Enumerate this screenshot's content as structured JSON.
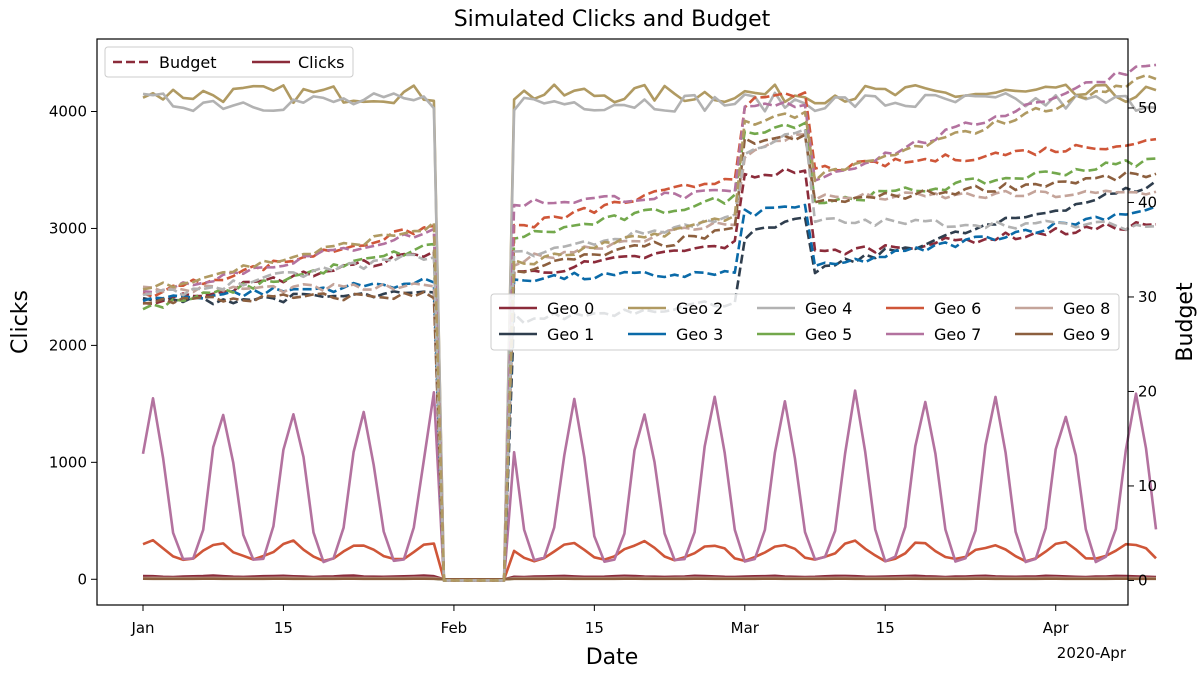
{
  "chart_data": {
    "type": "line",
    "title": "Simulated Clicks and Budget",
    "xlabel": "Date",
    "ylabel": "Clicks",
    "y2label": "Budget",
    "x_tick_labels": [
      "Jan",
      "15",
      "Feb",
      "15",
      "Mar",
      "15",
      "Apr"
    ],
    "x_offset_label": "2020-Apr",
    "x_range": [
      "2020-01-01",
      "2020-04-11"
    ],
    "ylim": [
      -220,
      4620
    ],
    "y2lim": [
      -2.6,
      57.3
    ],
    "y_ticks": [
      0,
      1000,
      2000,
      3000,
      4000
    ],
    "y2_ticks": [
      0,
      10,
      20,
      30,
      40,
      50
    ],
    "grid": false,
    "style_legend": {
      "placement": "top-left",
      "entries": [
        {
          "label": "Budget",
          "style": "dashed"
        },
        {
          "label": "Clicks",
          "style": "solid"
        }
      ]
    },
    "geo_legend": {
      "placement": "center-right",
      "entries": [
        {
          "label": "Geo 0",
          "color": "#8b2b3a"
        },
        {
          "label": "Geo 1",
          "color": "#2f3e4e"
        },
        {
          "label": "Geo 2",
          "color": "#b09a62"
        },
        {
          "label": "Geo 3",
          "color": "#0a6aa8"
        },
        {
          "label": "Geo 4",
          "color": "#b2b2b2"
        },
        {
          "label": "Geo 5",
          "color": "#73a84c"
        },
        {
          "label": "Geo 6",
          "color": "#cf5638"
        },
        {
          "label": "Geo 7",
          "color": "#b3729f"
        },
        {
          "label": "Geo 8",
          "color": "#c4a49a"
        },
        {
          "label": "Geo 9",
          "color": "#8c5f3e"
        }
      ]
    },
    "period_notes": {
      "zero_period": [
        "2020-01-31",
        "2020-02-07"
      ],
      "budget_boost_period": [
        "2020-03-01",
        "2020-03-07"
      ]
    },
    "clicks_series": [
      {
        "name": "Geo 0",
        "axis": "left",
        "color": "#8b2b3a",
        "weekly_pattern": [
          30,
          25,
          22,
          20,
          22,
          25,
          28
        ]
      },
      {
        "name": "Geo 1",
        "axis": "left",
        "color": "#2f3e4e",
        "weekly_pattern": [
          8,
          7,
          6,
          6,
          6,
          7,
          8
        ]
      },
      {
        "name": "Geo 2",
        "axis": "left",
        "color": "#b09a62",
        "base": 4150,
        "jitter": 80
      },
      {
        "name": "Geo 3",
        "axis": "left",
        "color": "#0a6aa8",
        "weekly_pattern": [
          8,
          7,
          6,
          6,
          6,
          7,
          8
        ]
      },
      {
        "name": "Geo 4",
        "axis": "left",
        "color": "#b2b2b2",
        "base": 4080,
        "jitter": 80
      },
      {
        "name": "Geo 5",
        "axis": "left",
        "color": "#73a84c",
        "weekly_pattern": [
          6,
          5,
          5,
          5,
          5,
          5,
          6
        ]
      },
      {
        "name": "Geo 6",
        "axis": "left",
        "color": "#cf5638",
        "weekly_pattern": [
          290,
          310,
          250,
          190,
          165,
          185,
          240
        ]
      },
      {
        "name": "Geo 7",
        "axis": "left",
        "color": "#b3729f",
        "weekly_pattern": [
          1100,
          1500,
          1050,
          400,
          160,
          180,
          420
        ]
      },
      {
        "name": "Geo 8",
        "axis": "left",
        "color": "#c4a49a",
        "weekly_pattern": [
          12,
          11,
          10,
          10,
          10,
          11,
          12
        ]
      },
      {
        "name": "Geo 9",
        "axis": "left",
        "color": "#8c5f3e",
        "weekly_pattern": [
          5,
          4,
          4,
          4,
          4,
          4,
          5
        ]
      }
    ],
    "budget_series": [
      {
        "name": "Geo 0",
        "axis": "right",
        "color": "#8b2b3a",
        "y_points": [
          [
            "2020-01-01",
            29.3
          ],
          [
            "2020-01-30",
            34.8
          ],
          [
            "2020-02-08",
            32.5
          ],
          [
            "2020-02-29",
            35.6
          ],
          [
            "2020-03-01",
            42.8
          ],
          [
            "2020-03-07",
            43.5
          ],
          [
            "2020-03-08",
            34.6
          ],
          [
            "2020-04-11",
            37.8
          ]
        ]
      },
      {
        "name": "Geo 1",
        "axis": "right",
        "color": "#2f3e4e",
        "y_points": [
          [
            "2020-01-01",
            29.5
          ],
          [
            "2020-01-30",
            30.3
          ],
          [
            "2020-02-08",
            27.6
          ],
          [
            "2020-02-29",
            29.5
          ],
          [
            "2020-03-01",
            36.5
          ],
          [
            "2020-03-07",
            38.1
          ],
          [
            "2020-03-08",
            32.8
          ],
          [
            "2020-04-11",
            42.0
          ]
        ]
      },
      {
        "name": "Geo 3",
        "axis": "right",
        "color": "#0a6aa8",
        "y_points": [
          [
            "2020-01-01",
            29.8
          ],
          [
            "2020-01-30",
            31.6
          ],
          [
            "2020-02-08",
            32.0
          ],
          [
            "2020-02-29",
            32.5
          ],
          [
            "2020-03-01",
            38.8
          ],
          [
            "2020-03-07",
            39.8
          ],
          [
            "2020-03-08",
            33.0
          ],
          [
            "2020-04-11",
            39.5
          ]
        ]
      },
      {
        "name": "Geo 5",
        "axis": "right",
        "color": "#73a84c",
        "y_points": [
          [
            "2020-01-01",
            28.7
          ],
          [
            "2020-01-30",
            35.4
          ],
          [
            "2020-02-08",
            36.5
          ],
          [
            "2020-02-29",
            40.5
          ],
          [
            "2020-03-01",
            47.5
          ],
          [
            "2020-03-07",
            48.5
          ],
          [
            "2020-03-08",
            40.0
          ],
          [
            "2020-04-11",
            44.5
          ]
        ]
      },
      {
        "name": "Geo 6",
        "axis": "right",
        "color": "#cf5638",
        "y_points": [
          [
            "2020-01-01",
            30.2
          ],
          [
            "2020-01-30",
            37.5
          ],
          [
            "2020-02-08",
            37.5
          ],
          [
            "2020-02-29",
            42.8
          ],
          [
            "2020-03-01",
            50.5
          ],
          [
            "2020-03-07",
            51.5
          ],
          [
            "2020-03-08",
            43.5
          ],
          [
            "2020-04-11",
            46.5
          ]
        ]
      },
      {
        "name": "Geo 7",
        "axis": "right",
        "color": "#b3729f",
        "y_points": [
          [
            "2020-01-01",
            30.5
          ],
          [
            "2020-01-30",
            37.0
          ],
          [
            "2020-02-08",
            40.0
          ],
          [
            "2020-02-29",
            41.0
          ],
          [
            "2020-03-01",
            50.0
          ],
          [
            "2020-03-07",
            50.5
          ],
          [
            "2020-03-08",
            42.5
          ],
          [
            "2020-04-11",
            55.0
          ]
        ]
      },
      {
        "name": "Geo 8",
        "axis": "right",
        "color": "#c4a49a",
        "y_points": [
          [
            "2020-01-01",
            30.8
          ],
          [
            "2020-01-30",
            31.0
          ],
          [
            "2020-02-08",
            34.0
          ],
          [
            "2020-02-29",
            38.0
          ],
          [
            "2020-03-01",
            45.0
          ],
          [
            "2020-03-07",
            47.5
          ],
          [
            "2020-03-08",
            40.5
          ],
          [
            "2020-04-11",
            41.0
          ]
        ]
      },
      {
        "name": "Geo 9",
        "axis": "right",
        "color": "#8c5f3e",
        "y_points": [
          [
            "2020-01-01",
            29.6
          ],
          [
            "2020-01-30",
            30.2
          ],
          [
            "2020-02-08",
            33.0
          ],
          [
            "2020-02-29",
            37.0
          ],
          [
            "2020-03-01",
            46.5
          ],
          [
            "2020-03-07",
            46.8
          ],
          [
            "2020-03-08",
            40.0
          ],
          [
            "2020-04-11",
            43.0
          ]
        ]
      },
      {
        "name": "Geo 4",
        "axis": "right",
        "color": "#b2b2b2",
        "y_points": [
          [
            "2020-01-01",
            30.0
          ],
          [
            "2020-01-30",
            34.5
          ],
          [
            "2020-02-08",
            34.5
          ],
          [
            "2020-02-29",
            38.5
          ],
          [
            "2020-03-01",
            45.5
          ],
          [
            "2020-03-07",
            47.5
          ],
          [
            "2020-03-08",
            38.0
          ],
          [
            "2020-04-11",
            37.5
          ]
        ]
      },
      {
        "name": "Geo 2",
        "axis": "right",
        "color": "#b09a62",
        "y_points": [
          [
            "2020-01-01",
            30.8
          ],
          [
            "2020-01-30",
            37.5
          ],
          [
            "2020-02-08",
            33.5
          ],
          [
            "2020-02-29",
            38.5
          ],
          [
            "2020-03-01",
            48.5
          ],
          [
            "2020-03-07",
            49.5
          ],
          [
            "2020-03-08",
            42.5
          ],
          [
            "2020-04-11",
            53.5
          ]
        ]
      }
    ]
  }
}
